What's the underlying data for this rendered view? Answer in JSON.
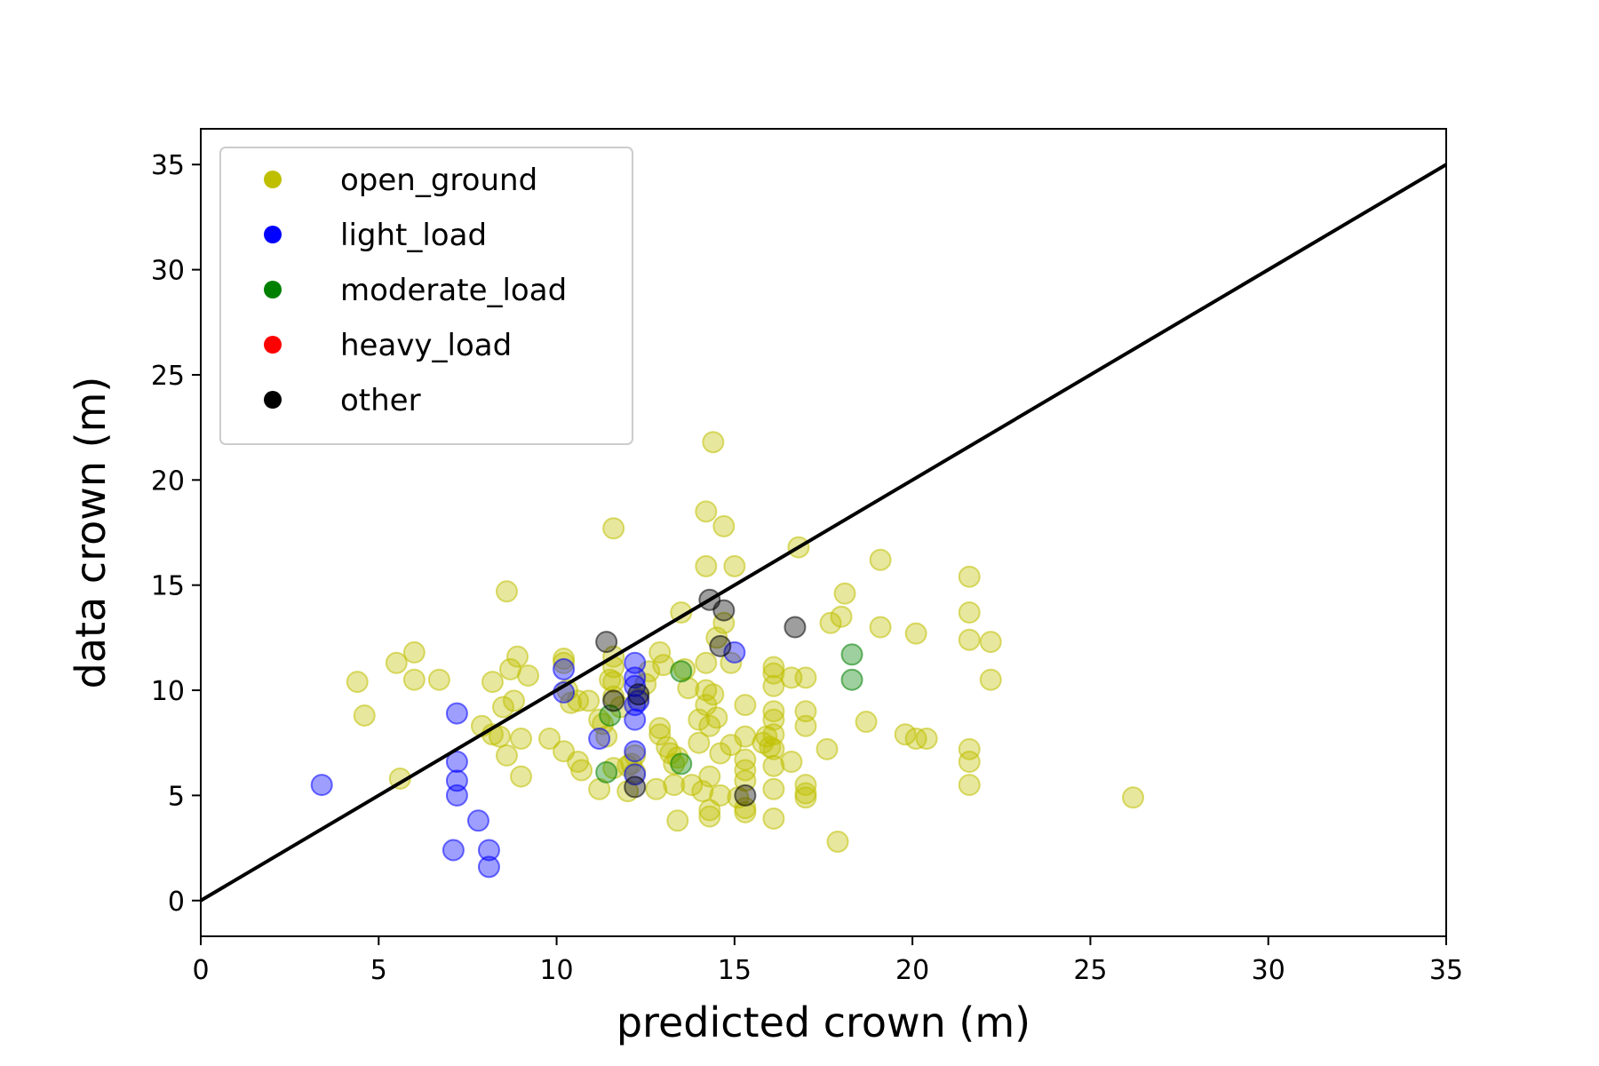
{
  "chart_data": {
    "type": "scatter",
    "title": "",
    "xlabel": "predicted crown (m)",
    "ylabel": "data crown (m)",
    "xlim": [
      0,
      35
    ],
    "ylim": [
      -1.7,
      36.7
    ],
    "xticks": [
      0,
      5,
      10,
      15,
      20,
      25,
      30,
      35
    ],
    "yticks": [
      0,
      5,
      10,
      15,
      20,
      25,
      30,
      35
    ],
    "grid": false,
    "legend_position": "top-left",
    "reference_line": {
      "x": [
        0,
        35
      ],
      "y": [
        0,
        35
      ],
      "color": "#000000"
    },
    "series": [
      {
        "name": "open_ground",
        "color": "#bfbf00",
        "points": [
          [
            4.4,
            10.4
          ],
          [
            4.6,
            8.8
          ],
          [
            5.5,
            11.3
          ],
          [
            5.6,
            5.8
          ],
          [
            6.0,
            11.8
          ],
          [
            6.0,
            10.5
          ],
          [
            6.7,
            10.5
          ],
          [
            7.9,
            8.3
          ],
          [
            8.2,
            10.4
          ],
          [
            8.2,
            7.9
          ],
          [
            8.4,
            7.8
          ],
          [
            8.5,
            9.2
          ],
          [
            8.6,
            14.7
          ],
          [
            8.6,
            6.9
          ],
          [
            8.7,
            11.0
          ],
          [
            8.8,
            9.5
          ],
          [
            8.9,
            11.6
          ],
          [
            9.0,
            7.7
          ],
          [
            9.0,
            5.9
          ],
          [
            9.2,
            10.7
          ],
          [
            9.8,
            7.7
          ],
          [
            10.2,
            11.5
          ],
          [
            10.2,
            11.3
          ],
          [
            10.2,
            7.1
          ],
          [
            10.3,
            10.0
          ],
          [
            10.4,
            9.4
          ],
          [
            10.6,
            9.5
          ],
          [
            10.6,
            6.6
          ],
          [
            10.7,
            6.2
          ],
          [
            10.9,
            9.5
          ],
          [
            11.2,
            5.3
          ],
          [
            11.2,
            8.6
          ],
          [
            11.3,
            8.4
          ],
          [
            11.4,
            7.8
          ],
          [
            11.5,
            10.5
          ],
          [
            11.6,
            17.7
          ],
          [
            11.6,
            11.6
          ],
          [
            11.6,
            11.1
          ],
          [
            11.6,
            10.4
          ],
          [
            11.6,
            9.7
          ],
          [
            11.6,
            6.3
          ],
          [
            11.8,
            9.2
          ],
          [
            12.0,
            5.2
          ],
          [
            12.0,
            6.4
          ],
          [
            12.1,
            6.5
          ],
          [
            12.2,
            6.1
          ],
          [
            12.2,
            6.9
          ],
          [
            12.3,
            9.6
          ],
          [
            12.5,
            10.3
          ],
          [
            12.6,
            10.9
          ],
          [
            12.8,
            5.3
          ],
          [
            12.9,
            11.8
          ],
          [
            12.9,
            8.2
          ],
          [
            12.9,
            7.9
          ],
          [
            13.0,
            11.2
          ],
          [
            13.1,
            7.3
          ],
          [
            13.2,
            7.0
          ],
          [
            13.3,
            6.5
          ],
          [
            13.3,
            5.5
          ],
          [
            13.4,
            6.8
          ],
          [
            13.4,
            3.8
          ],
          [
            13.5,
            13.7
          ],
          [
            13.6,
            11.0
          ],
          [
            13.7,
            10.1
          ],
          [
            13.8,
            5.5
          ],
          [
            14.0,
            7.5
          ],
          [
            14.0,
            8.6
          ],
          [
            14.1,
            5.2
          ],
          [
            14.2,
            18.5
          ],
          [
            14.2,
            15.9
          ],
          [
            14.2,
            11.3
          ],
          [
            14.2,
            10.0
          ],
          [
            14.2,
            9.3
          ],
          [
            14.3,
            8.3
          ],
          [
            14.3,
            5.9
          ],
          [
            14.3,
            4.3
          ],
          [
            14.3,
            4.0
          ],
          [
            14.4,
            21.8
          ],
          [
            14.4,
            9.8
          ],
          [
            14.5,
            12.5
          ],
          [
            14.5,
            8.7
          ],
          [
            14.6,
            7.0
          ],
          [
            14.6,
            5.0
          ],
          [
            14.7,
            17.8
          ],
          [
            14.7,
            13.2
          ],
          [
            14.9,
            11.3
          ],
          [
            14.9,
            7.4
          ],
          [
            15.0,
            15.9
          ],
          [
            15.1,
            4.9
          ],
          [
            15.3,
            9.3
          ],
          [
            15.3,
            7.8
          ],
          [
            15.3,
            6.7
          ],
          [
            15.3,
            6.2
          ],
          [
            15.3,
            5.7
          ],
          [
            15.3,
            4.4
          ],
          [
            15.3,
            4.2
          ],
          [
            15.8,
            7.5
          ],
          [
            15.9,
            7.8
          ],
          [
            16.0,
            7.3
          ],
          [
            16.1,
            11.1
          ],
          [
            16.1,
            10.8
          ],
          [
            16.1,
            10.2
          ],
          [
            16.1,
            9.0
          ],
          [
            16.1,
            8.6
          ],
          [
            16.1,
            7.9
          ],
          [
            16.1,
            7.2
          ],
          [
            16.1,
            6.4
          ],
          [
            16.1,
            5.3
          ],
          [
            16.1,
            3.9
          ],
          [
            16.6,
            10.6
          ],
          [
            16.6,
            6.6
          ],
          [
            16.8,
            16.8
          ],
          [
            17.0,
            10.6
          ],
          [
            17.0,
            9.0
          ],
          [
            17.0,
            8.3
          ],
          [
            17.0,
            5.5
          ],
          [
            17.0,
            5.1
          ],
          [
            17.0,
            4.9
          ],
          [
            17.6,
            7.2
          ],
          [
            17.7,
            13.2
          ],
          [
            17.9,
            2.8
          ],
          [
            18.1,
            14.6
          ],
          [
            18.0,
            13.5
          ],
          [
            18.7,
            8.5
          ],
          [
            19.1,
            16.2
          ],
          [
            19.1,
            13.0
          ],
          [
            19.8,
            7.9
          ],
          [
            20.1,
            12.7
          ],
          [
            20.1,
            7.7
          ],
          [
            20.4,
            7.7
          ],
          [
            21.6,
            15.4
          ],
          [
            21.6,
            13.7
          ],
          [
            21.6,
            12.4
          ],
          [
            21.6,
            7.2
          ],
          [
            21.6,
            6.6
          ],
          [
            21.6,
            5.5
          ],
          [
            22.2,
            12.3
          ],
          [
            22.2,
            10.5
          ],
          [
            26.2,
            4.9
          ]
        ]
      },
      {
        "name": "light_load",
        "color": "#0000ff",
        "points": [
          [
            3.4,
            5.5
          ],
          [
            7.1,
            2.4
          ],
          [
            7.2,
            8.9
          ],
          [
            7.2,
            6.6
          ],
          [
            7.2,
            5.7
          ],
          [
            7.2,
            5.0
          ],
          [
            7.8,
            3.8
          ],
          [
            8.1,
            2.4
          ],
          [
            8.1,
            1.6
          ],
          [
            10.2,
            11.0
          ],
          [
            10.2,
            9.9
          ],
          [
            11.2,
            7.7
          ],
          [
            12.2,
            11.3
          ],
          [
            12.2,
            10.6
          ],
          [
            12.2,
            10.2
          ],
          [
            12.2,
            9.3
          ],
          [
            12.2,
            8.6
          ],
          [
            12.2,
            7.1
          ],
          [
            12.2,
            6.0
          ],
          [
            12.3,
            9.5
          ],
          [
            15.0,
            11.8
          ]
        ]
      },
      {
        "name": "moderate_load",
        "color": "#008000",
        "points": [
          [
            11.4,
            6.1
          ],
          [
            11.5,
            8.8
          ],
          [
            13.5,
            10.9
          ],
          [
            13.5,
            6.5
          ],
          [
            18.3,
            11.7
          ],
          [
            18.3,
            10.5
          ]
        ]
      },
      {
        "name": "heavy_load",
        "color": "#ff0000",
        "points": []
      },
      {
        "name": "other",
        "color": "#000000",
        "points": [
          [
            11.4,
            12.3
          ],
          [
            11.6,
            9.5
          ],
          [
            12.2,
            5.4
          ],
          [
            12.3,
            9.8
          ],
          [
            14.3,
            14.3
          ],
          [
            14.6,
            12.1
          ],
          [
            14.7,
            13.8
          ],
          [
            15.3,
            5.0
          ],
          [
            16.7,
            13.0
          ]
        ]
      }
    ]
  }
}
